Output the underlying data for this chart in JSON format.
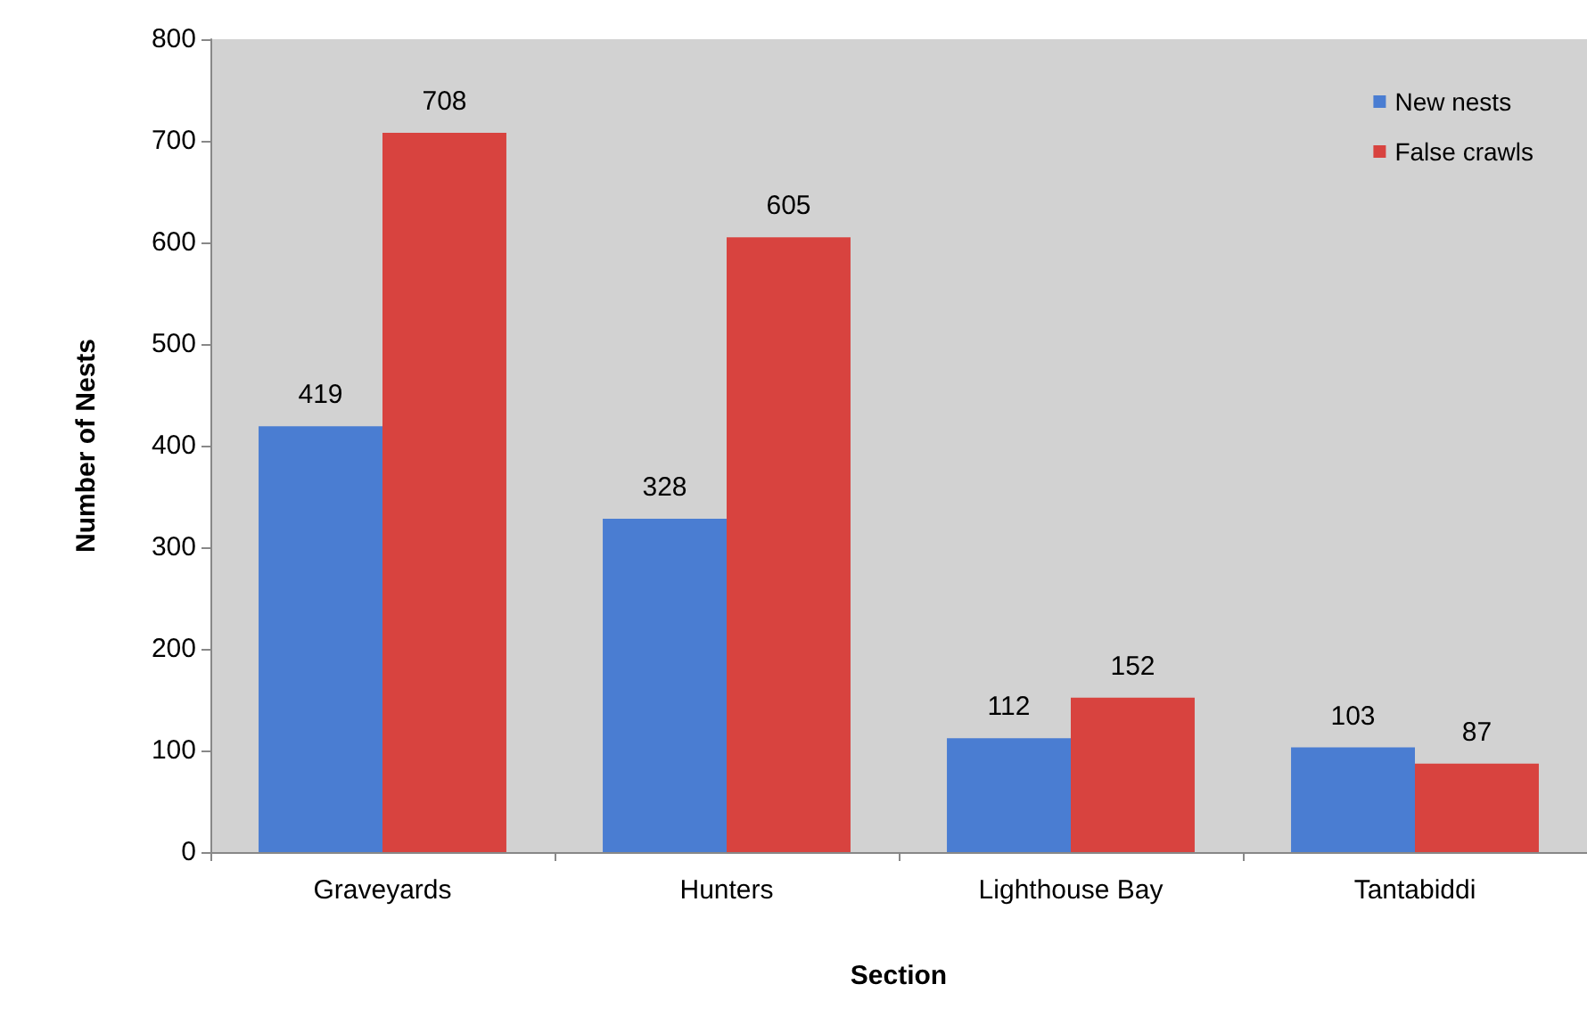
{
  "chart_data": {
    "type": "bar",
    "xlabel": "Section",
    "ylabel": "Number of Nests",
    "categories": [
      "Graveyards",
      "Hunters",
      "Lighthouse Bay",
      "Tantabiddi"
    ],
    "series": [
      {
        "name": "New nests",
        "color": "#4a7dd2",
        "values": [
          419,
          328,
          112,
          103
        ]
      },
      {
        "name": "False crawls",
        "color": "#d8433f",
        "values": [
          708,
          605,
          152,
          87
        ]
      }
    ],
    "ylim": [
      0,
      800
    ],
    "yticks": [
      0,
      100,
      200,
      300,
      400,
      500,
      600,
      700,
      800
    ],
    "grid": false,
    "legend": "top right",
    "data_labels": true
  }
}
